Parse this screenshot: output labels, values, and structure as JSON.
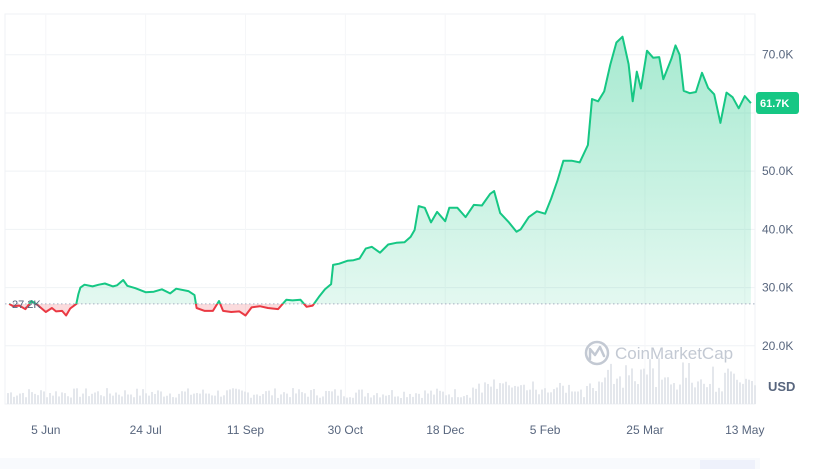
{
  "chart_data": {
    "type": "area",
    "unit_label": "USD",
    "watermark": "CoinMarketCap",
    "reference": {
      "value": 27200,
      "label": "27.2K"
    },
    "current": {
      "value": 61700,
      "label": "61.7K"
    },
    "ylim": [
      10000,
      77000
    ],
    "yticks": [
      {
        "value": 70000,
        "label": "70.0K"
      },
      {
        "value": 60000,
        "label": ""
      },
      {
        "value": 50000,
        "label": "50.0K"
      },
      {
        "value": 40000,
        "label": "40.0K"
      },
      {
        "value": 30000,
        "label": "30.0K"
      },
      {
        "value": 20000,
        "label": "20.0K"
      }
    ],
    "xlim": [
      "2023-05-16",
      "2024-05-18"
    ],
    "xticks": [
      {
        "date": "2023-06-05",
        "label": "5 Jun"
      },
      {
        "date": "2023-07-24",
        "label": "24 Jul"
      },
      {
        "date": "2023-09-11",
        "label": "11 Sep"
      },
      {
        "date": "2023-10-30",
        "label": "30 Oct"
      },
      {
        "date": "2023-12-18",
        "label": "18 Dec"
      },
      {
        "date": "2024-02-05",
        "label": "5 Feb"
      },
      {
        "date": "2024-03-25",
        "label": "25 Mar"
      },
      {
        "date": "2024-05-13",
        "label": "13 May"
      }
    ],
    "grid": true,
    "colors": {
      "up": "#16c784",
      "down": "#ea3943",
      "area": "#16c784",
      "axis_text": "#58667e",
      "grid": "#eff2f5",
      "volume": "#e4e7ec"
    },
    "series": [
      {
        "points": [
          [
            "2023-05-18",
            27200
          ],
          [
            "2023-05-20",
            26800
          ],
          [
            "2023-05-23",
            26900
          ],
          [
            "2023-05-26",
            26300
          ],
          [
            "2023-05-29",
            27700
          ],
          [
            "2023-06-01",
            27000
          ],
          [
            "2023-06-05",
            25800
          ],
          [
            "2023-06-08",
            26500
          ],
          [
            "2023-06-10",
            25900
          ],
          [
            "2023-06-13",
            26000
          ],
          [
            "2023-06-15",
            25200
          ],
          [
            "2023-06-17",
            26400
          ],
          [
            "2023-06-20",
            27200
          ],
          [
            "2023-06-21",
            28900
          ],
          [
            "2023-06-22",
            30000
          ],
          [
            "2023-06-24",
            30500
          ],
          [
            "2023-06-28",
            30200
          ],
          [
            "2023-07-01",
            30500
          ],
          [
            "2023-07-04",
            30700
          ],
          [
            "2023-07-08",
            30200
          ],
          [
            "2023-07-10",
            30400
          ],
          [
            "2023-07-13",
            31300
          ],
          [
            "2023-07-15",
            30300
          ],
          [
            "2023-07-19",
            29900
          ],
          [
            "2023-07-24",
            29200
          ],
          [
            "2023-07-28",
            29300
          ],
          [
            "2023-08-01",
            29700
          ],
          [
            "2023-08-05",
            29000
          ],
          [
            "2023-08-08",
            29800
          ],
          [
            "2023-08-14",
            29400
          ],
          [
            "2023-08-17",
            28700
          ],
          [
            "2023-08-18",
            26500
          ],
          [
            "2023-08-22",
            26000
          ],
          [
            "2023-08-26",
            26000
          ],
          [
            "2023-08-29",
            27700
          ],
          [
            "2023-08-31",
            26000
          ],
          [
            "2023-09-04",
            25800
          ],
          [
            "2023-09-08",
            25900
          ],
          [
            "2023-09-11",
            25200
          ],
          [
            "2023-09-14",
            26600
          ],
          [
            "2023-09-18",
            26800
          ],
          [
            "2023-09-22",
            26500
          ],
          [
            "2023-09-27",
            26300
          ],
          [
            "2023-10-01",
            27900
          ],
          [
            "2023-10-04",
            27800
          ],
          [
            "2023-10-08",
            27900
          ],
          [
            "2023-10-11",
            26700
          ],
          [
            "2023-10-14",
            26900
          ],
          [
            "2023-10-17",
            28400
          ],
          [
            "2023-10-20",
            29700
          ],
          [
            "2023-10-23",
            30600
          ],
          [
            "2023-10-24",
            33900
          ],
          [
            "2023-10-27",
            34100
          ],
          [
            "2023-10-31",
            34600
          ],
          [
            "2023-11-03",
            34700
          ],
          [
            "2023-11-06",
            35000
          ],
          [
            "2023-11-09",
            36700
          ],
          [
            "2023-11-12",
            37000
          ],
          [
            "2023-11-16",
            36000
          ],
          [
            "2023-11-20",
            37400
          ],
          [
            "2023-11-24",
            37700
          ],
          [
            "2023-11-28",
            37800
          ],
          [
            "2023-12-01",
            38700
          ],
          [
            "2023-12-03",
            39900
          ],
          [
            "2023-12-05",
            44000
          ],
          [
            "2023-12-08",
            43700
          ],
          [
            "2023-12-11",
            41200
          ],
          [
            "2023-12-14",
            43000
          ],
          [
            "2023-12-18",
            41400
          ],
          [
            "2023-12-20",
            43700
          ],
          [
            "2023-12-24",
            43700
          ],
          [
            "2023-12-28",
            42100
          ],
          [
            "2024-01-01",
            44200
          ],
          [
            "2024-01-05",
            44100
          ],
          [
            "2024-01-09",
            46100
          ],
          [
            "2024-01-11",
            46600
          ],
          [
            "2024-01-14",
            42800
          ],
          [
            "2024-01-18",
            41300
          ],
          [
            "2024-01-22",
            39600
          ],
          [
            "2024-01-24",
            40000
          ],
          [
            "2024-01-28",
            42100
          ],
          [
            "2024-02-01",
            43100
          ],
          [
            "2024-02-05",
            42700
          ],
          [
            "2024-02-08",
            45300
          ],
          [
            "2024-02-11",
            48300
          ],
          [
            "2024-02-14",
            51800
          ],
          [
            "2024-02-18",
            51800
          ],
          [
            "2024-02-22",
            51500
          ],
          [
            "2024-02-26",
            54500
          ],
          [
            "2024-02-28",
            62400
          ],
          [
            "2024-03-02",
            62000
          ],
          [
            "2024-03-05",
            63700
          ],
          [
            "2024-03-08",
            68300
          ],
          [
            "2024-03-11",
            72100
          ],
          [
            "2024-03-14",
            73100
          ],
          [
            "2024-03-17",
            68400
          ],
          [
            "2024-03-19",
            62000
          ],
          [
            "2024-03-21",
            67100
          ],
          [
            "2024-03-23",
            64200
          ],
          [
            "2024-03-26",
            70700
          ],
          [
            "2024-03-29",
            69500
          ],
          [
            "2024-04-01",
            69600
          ],
          [
            "2024-04-03",
            65800
          ],
          [
            "2024-04-07",
            69300
          ],
          [
            "2024-04-09",
            71600
          ],
          [
            "2024-04-11",
            70000
          ],
          [
            "2024-04-13",
            63800
          ],
          [
            "2024-04-16",
            63400
          ],
          [
            "2024-04-19",
            63600
          ],
          [
            "2024-04-22",
            66900
          ],
          [
            "2024-04-25",
            64300
          ],
          [
            "2024-04-28",
            63200
          ],
          [
            "2024-05-01",
            58300
          ],
          [
            "2024-05-04",
            63500
          ],
          [
            "2024-05-07",
            62700
          ],
          [
            "2024-05-10",
            60800
          ],
          [
            "2024-05-13",
            62900
          ],
          [
            "2024-05-16",
            61700
          ]
        ]
      }
    ],
    "volume": {
      "relative_range": [
        0,
        1
      ]
    }
  }
}
